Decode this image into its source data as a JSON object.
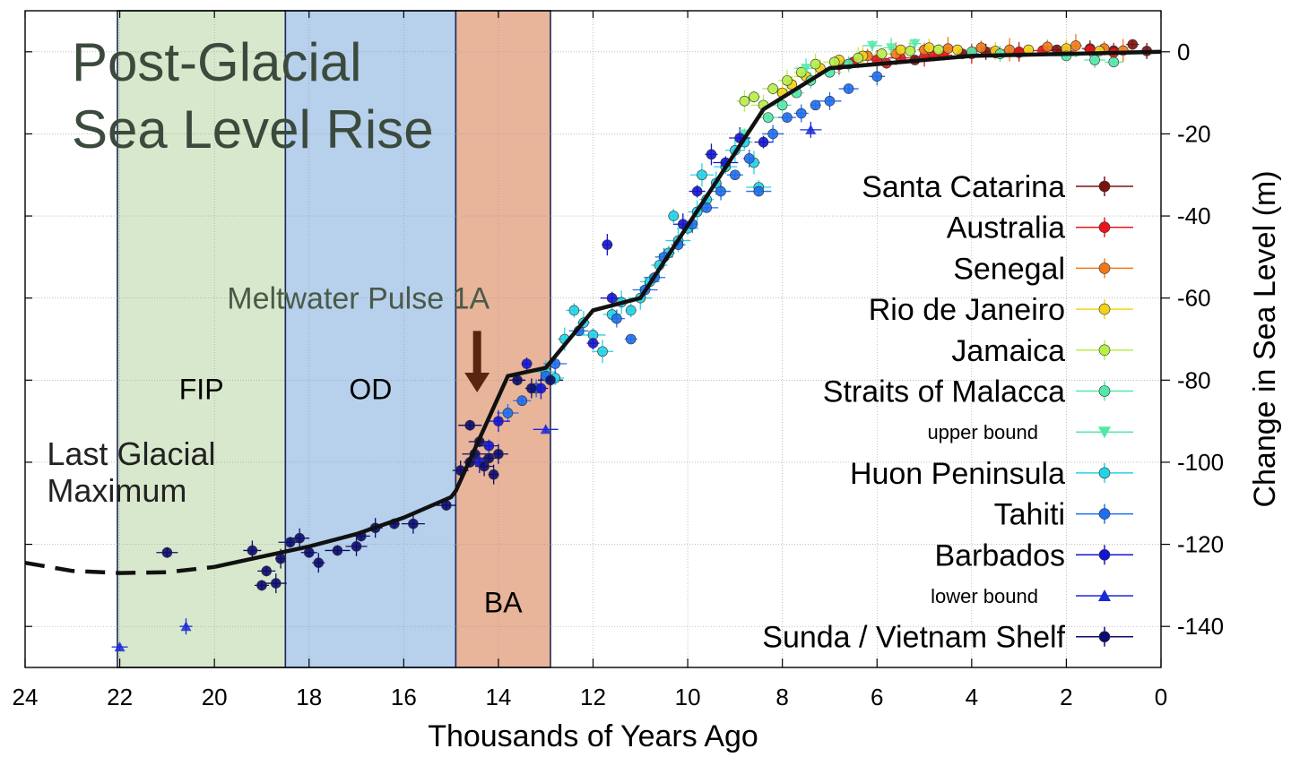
{
  "chart_data": {
    "type": "scatter",
    "title": "Post-Glacial Sea Level Rise",
    "xlabel": "Thousands of Years Ago",
    "ylabel": "Change in Sea Level (m)",
    "xlim": [
      24,
      0
    ],
    "ylim": [
      -150,
      10
    ],
    "x_reversed": true,
    "x_ticks": [
      24,
      22,
      20,
      18,
      16,
      14,
      12,
      10,
      8,
      6,
      4,
      2,
      0
    ],
    "y_ticks": [
      0,
      -20,
      -40,
      -60,
      -80,
      -100,
      -120,
      -140
    ],
    "grid": true,
    "legend_position": "right",
    "periods": [
      {
        "label": "FIP",
        "start": 22.05,
        "end": 18.5,
        "color": "#d8e8cc"
      },
      {
        "label": "OD",
        "start": 18.5,
        "end": 14.9,
        "color": "#b7d0ec"
      },
      {
        "label": "BA",
        "start": 14.9,
        "end": 12.9,
        "color": "#e8b49a"
      }
    ],
    "annotations": [
      {
        "text": "Meltwater Pulse 1A",
        "arrow_x": 14.45,
        "arrow_y_from": -68,
        "arrow_y_to": -83
      },
      {
        "text": "Last Glacial",
        "x": 23.5,
        "y": -98
      },
      {
        "text": "Maximum",
        "x": 23.5,
        "y": -107
      }
    ],
    "trend_line": [
      {
        "x": 24.0,
        "y": -124.5
      },
      {
        "x": 23.0,
        "y": -126.5
      },
      {
        "x": 22.0,
        "y": -127.0
      },
      {
        "x": 21.0,
        "y": -126.8
      },
      {
        "x": 20.0,
        "y": -125.5
      },
      {
        "x": 19.0,
        "y": -123.0
      },
      {
        "x": 18.0,
        "y": -120.5
      },
      {
        "x": 17.0,
        "y": -117.5
      },
      {
        "x": 16.0,
        "y": -113.5
      },
      {
        "x": 15.0,
        "y": -108.5
      },
      {
        "x": 14.9,
        "y": -107.0
      },
      {
        "x": 13.8,
        "y": -79.0
      },
      {
        "x": 13.0,
        "y": -77.0
      },
      {
        "x": 12.0,
        "y": -63.0
      },
      {
        "x": 11.0,
        "y": -60.0
      },
      {
        "x": 8.4,
        "y": -14.0
      },
      {
        "x": 7.0,
        "y": -4.0
      },
      {
        "x": 4.0,
        "y": -1.0
      },
      {
        "x": 0.0,
        "y": 0.0
      }
    ],
    "trend_dashed_before": 19.5,
    "series": [
      {
        "name": "Santa Catarina",
        "marker": "circle",
        "color": "#7a1212",
        "points": [
          [
            4.2,
            -0.5
          ],
          [
            3.0,
            -0.2
          ],
          [
            2.2,
            0.5
          ],
          [
            1.5,
            0.8
          ],
          [
            0.6,
            1.8
          ],
          [
            0.3,
            0.2
          ],
          [
            5.2,
            -2.0
          ],
          [
            3.7,
            0.0
          ],
          [
            1.0,
            0.3
          ]
        ]
      },
      {
        "name": "Australia",
        "marker": "circle",
        "color": "#e8161a",
        "points": [
          [
            6.5,
            -2.5
          ],
          [
            6.0,
            -2.0
          ],
          [
            5.5,
            -1.5
          ],
          [
            5.0,
            -1.2
          ],
          [
            4.6,
            -0.8
          ],
          [
            4.0,
            -0.5
          ],
          [
            3.5,
            -0.3
          ],
          [
            3.0,
            0.0
          ],
          [
            2.5,
            0.3
          ],
          [
            2.0,
            0.2
          ],
          [
            1.5,
            0.5
          ],
          [
            1.0,
            -0.2
          ],
          [
            5.8,
            -2.8
          ],
          [
            6.8,
            -3.2
          ],
          [
            4.8,
            -1.0
          ]
        ]
      },
      {
        "name": "Senegal",
        "marker": "circle",
        "color": "#f07a1a",
        "points": [
          [
            6.2,
            -1.0
          ],
          [
            5.6,
            -0.5
          ],
          [
            5.0,
            0.5
          ],
          [
            4.5,
            0.8
          ],
          [
            3.8,
            1.0
          ],
          [
            3.2,
            0.5
          ],
          [
            2.4,
            1.2
          ],
          [
            1.8,
            1.5
          ],
          [
            1.2,
            0.8
          ],
          [
            0.8,
            0.3
          ]
        ]
      },
      {
        "name": "Rio de Janeiro",
        "marker": "circle",
        "color": "#f2d21a",
        "points": [
          [
            7.8,
            -8.0
          ],
          [
            7.5,
            -6.0
          ],
          [
            7.2,
            -4.0
          ],
          [
            6.8,
            -2.0
          ],
          [
            6.3,
            -1.0
          ],
          [
            5.5,
            0.5
          ],
          [
            4.9,
            1.0
          ],
          [
            4.3,
            0.5
          ],
          [
            3.5,
            0.2
          ],
          [
            2.8,
            0.5
          ],
          [
            2.0,
            0.8
          ],
          [
            1.3,
            0.2
          ],
          [
            8.0,
            -10.0
          ]
        ]
      },
      {
        "name": "Jamaica",
        "marker": "circle",
        "color": "#b8ee4a",
        "points": [
          [
            8.8,
            -12.0
          ],
          [
            8.6,
            -11.0
          ],
          [
            8.4,
            -13.0
          ],
          [
            8.2,
            -9.0
          ],
          [
            7.9,
            -7.0
          ],
          [
            7.6,
            -5.0
          ],
          [
            7.3,
            -3.0
          ],
          [
            6.9,
            -2.5
          ],
          [
            6.4,
            -1.5
          ],
          [
            5.9,
            -0.5
          ],
          [
            5.3,
            0.2
          ],
          [
            4.7,
            0.5
          ]
        ]
      },
      {
        "name": "Straits of Malacca",
        "marker": "circle",
        "color": "#52e8a8",
        "points": [
          [
            8.3,
            -16.0
          ],
          [
            8.0,
            -13.0
          ],
          [
            7.7,
            -10.0
          ],
          [
            7.4,
            -7.0
          ],
          [
            7.0,
            -5.0
          ],
          [
            6.6,
            -3.0
          ],
          [
            4.0,
            0.0
          ],
          [
            3.4,
            -0.5
          ],
          [
            2.0,
            -1.0
          ],
          [
            1.4,
            -2.0
          ],
          [
            1.0,
            -2.5
          ]
        ]
      },
      {
        "name": "upper bound",
        "marker": "triangle-down",
        "color": "#52e8a8",
        "points": [
          [
            8.8,
            -20.0
          ],
          [
            7.5,
            -4.0
          ],
          [
            6.1,
            1.5
          ],
          [
            5.7,
            1.0
          ],
          [
            5.2,
            2.0
          ]
        ]
      },
      {
        "name": "Huon Peninsula",
        "marker": "circle",
        "color": "#24d2e6",
        "points": [
          [
            12.4,
            -63.0
          ],
          [
            12.2,
            -66.0
          ],
          [
            12.0,
            -69.0
          ],
          [
            11.8,
            -73.0
          ],
          [
            11.6,
            -64.0
          ],
          [
            11.4,
            -61.0
          ],
          [
            11.2,
            -63.0
          ],
          [
            11.0,
            -60.0
          ],
          [
            10.8,
            -56.0
          ],
          [
            10.6,
            -52.0
          ],
          [
            10.4,
            -49.0
          ],
          [
            10.2,
            -46.0
          ],
          [
            10.0,
            -43.0
          ],
          [
            9.8,
            -39.0
          ],
          [
            9.6,
            -36.0
          ],
          [
            9.4,
            -32.0
          ],
          [
            9.2,
            -28.0
          ],
          [
            9.0,
            -24.0
          ],
          [
            8.8,
            -22.0
          ],
          [
            8.6,
            -27.0
          ],
          [
            8.5,
            -33.0
          ],
          [
            13.0,
            -78.0
          ],
          [
            12.8,
            -79.5
          ],
          [
            12.6,
            -70.0
          ],
          [
            10.3,
            -40.0
          ],
          [
            9.7,
            -30.0
          ]
        ]
      },
      {
        "name": "Tahiti",
        "marker": "circle",
        "color": "#1e6ef0",
        "points": [
          [
            13.8,
            -88.0
          ],
          [
            13.5,
            -85.0
          ],
          [
            13.2,
            -82.0
          ],
          [
            13.0,
            -79.0
          ],
          [
            12.8,
            -76.0
          ],
          [
            12.3,
            -68.0
          ],
          [
            11.5,
            -65.0
          ],
          [
            11.2,
            -70.0
          ],
          [
            10.9,
            -58.0
          ],
          [
            10.7,
            -55.0
          ],
          [
            10.5,
            -50.0
          ],
          [
            10.2,
            -47.0
          ],
          [
            9.9,
            -42.0
          ],
          [
            9.6,
            -38.0
          ],
          [
            9.3,
            -34.0
          ],
          [
            9.0,
            -30.0
          ],
          [
            8.7,
            -26.0
          ],
          [
            8.5,
            -34.0
          ],
          [
            8.2,
            -20.0
          ],
          [
            7.9,
            -16.0
          ],
          [
            7.6,
            -15.0
          ],
          [
            7.3,
            -13.0
          ],
          [
            7.0,
            -12.0
          ],
          [
            6.6,
            -9.0
          ],
          [
            6.0,
            -6.0
          ]
        ]
      },
      {
        "name": "Barbados",
        "marker": "circle",
        "color": "#1414d2",
        "points": [
          [
            11.7,
            -47.0
          ],
          [
            11.6,
            -60.0
          ],
          [
            10.1,
            -42.0
          ],
          [
            9.8,
            -34.0
          ],
          [
            9.5,
            -25.0
          ],
          [
            9.2,
            -27.0
          ],
          [
            8.9,
            -21.0
          ],
          [
            8.4,
            -22.0
          ],
          [
            13.1,
            -82.0
          ],
          [
            13.4,
            -76.0
          ],
          [
            14.0,
            -90.0
          ],
          [
            14.2,
            -96.0
          ],
          [
            14.4,
            -100.0
          ],
          [
            12.0,
            -71.0
          ]
        ]
      },
      {
        "name": "lower bound",
        "marker": "triangle-up",
        "color": "#1a2ad8",
        "points": [
          [
            22.0,
            -145.0
          ],
          [
            20.6,
            -140.0
          ],
          [
            13.0,
            -92.0
          ],
          [
            7.4,
            -19.0
          ]
        ]
      },
      {
        "name": "Sunda / Vietnam Shelf",
        "marker": "circle",
        "color": "#0c0c6e",
        "points": [
          [
            21.0,
            -122.0
          ],
          [
            19.2,
            -121.5
          ],
          [
            19.0,
            -130.0
          ],
          [
            18.6,
            -123.5
          ],
          [
            18.4,
            -119.5
          ],
          [
            18.2,
            -118.5
          ],
          [
            18.0,
            -122.0
          ],
          [
            17.8,
            -124.5
          ],
          [
            17.4,
            -121.5
          ],
          [
            17.0,
            -120.5
          ],
          [
            16.9,
            -118.0
          ],
          [
            16.6,
            -116.0
          ],
          [
            16.2,
            -115.0
          ],
          [
            15.8,
            -115.0
          ],
          [
            15.1,
            -110.5
          ],
          [
            14.8,
            -102.0
          ],
          [
            14.6,
            -100.0
          ],
          [
            14.5,
            -98.0
          ],
          [
            14.4,
            -95.0
          ],
          [
            14.3,
            -101.0
          ],
          [
            14.2,
            -99.0
          ],
          [
            14.1,
            -103.0
          ],
          [
            14.6,
            -91.0
          ],
          [
            14.0,
            -98.0
          ],
          [
            13.6,
            -80.0
          ],
          [
            13.3,
            -82.0
          ],
          [
            12.9,
            -80.0
          ],
          [
            18.7,
            -129.5
          ],
          [
            18.9,
            -126.5
          ]
        ]
      }
    ]
  }
}
